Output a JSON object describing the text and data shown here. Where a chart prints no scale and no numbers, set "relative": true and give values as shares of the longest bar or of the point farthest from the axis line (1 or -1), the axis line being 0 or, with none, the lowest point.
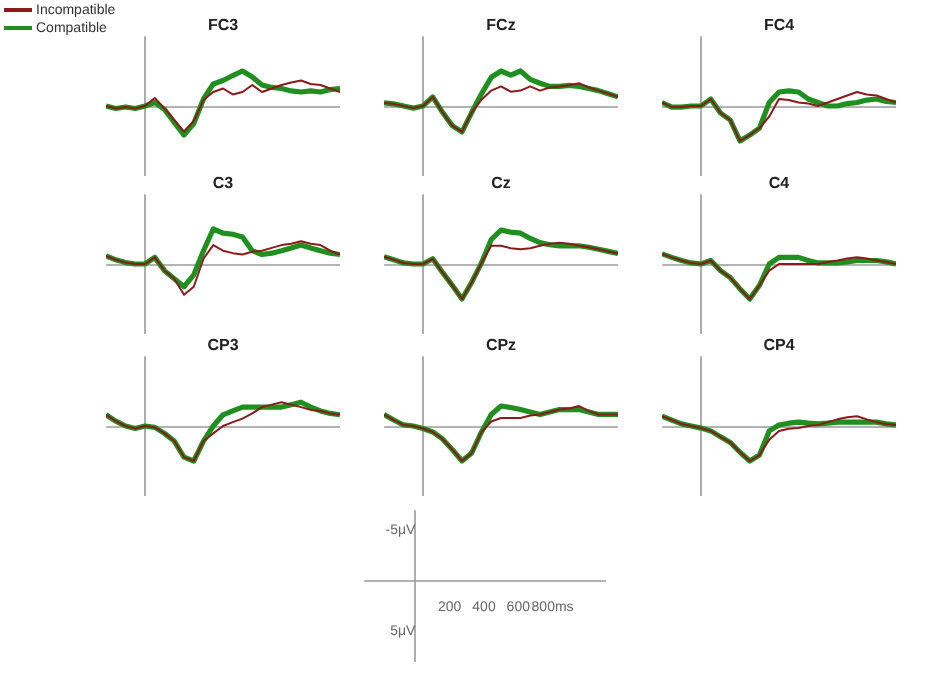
{
  "chart_data": [
    {
      "type": "line",
      "title": "FC3",
      "legend": "top left",
      "relative": true,
      "categories": [
        null,
        null,
        null,
        null,
        null,
        null,
        null,
        null,
        null,
        null,
        null,
        null,
        null,
        null,
        null,
        null,
        null,
        null,
        null,
        null,
        null,
        null,
        null,
        null,
        null
      ],
      "series": [
        {
          "name": "Incompatible",
          "color": "#8b1a1a",
          "values": [
            0,
            -0.07,
            -0.03,
            -0.07,
            0,
            0.23,
            -0.07,
            -0.4,
            -0.73,
            -0.43,
            0.17,
            0.4,
            0.5,
            0.33,
            0.4,
            0.6,
            0.4,
            0.5,
            0.6,
            0.67,
            0.73,
            0.63,
            0.6,
            0.5,
            0.4
          ]
        },
        {
          "name": "Compatible",
          "color": "#1f8f1f",
          "values": [
            0,
            -0.07,
            -0.03,
            -0.07,
            0,
            0.1,
            -0.1,
            -0.47,
            -0.83,
            -0.5,
            0.2,
            0.63,
            0.73,
            0.87,
            1,
            0.83,
            0.6,
            0.53,
            0.5,
            0.43,
            0.4,
            0.43,
            0.4,
            0.47,
            0.5
          ]
        }
      ]
    },
    {
      "type": "line",
      "title": "FCz",
      "relative": true,
      "categories": [
        null,
        null,
        null,
        null,
        null,
        null,
        null,
        null,
        null,
        null,
        null,
        null,
        null,
        null,
        null,
        null,
        null,
        null,
        null,
        null,
        null,
        null,
        null,
        null,
        null
      ],
      "series": [
        {
          "color": "#8b1a1a",
          "values": [
            0.09,
            0.06,
            0,
            -0.06,
            0,
            0.26,
            -0.18,
            -0.56,
            -0.74,
            -0.18,
            0.18,
            0.44,
            0.56,
            0.41,
            0.44,
            0.56,
            0.44,
            0.53,
            0.56,
            0.59,
            0.65,
            0.53,
            0.44,
            0.35,
            0.26
          ]
        },
        {
          "color": "#1f8f1f",
          "values": [
            0.09,
            0.06,
            0,
            -0.06,
            0,
            0.26,
            -0.18,
            -0.56,
            -0.74,
            -0.18,
            0.35,
            0.82,
            1,
            0.88,
            1,
            0.76,
            0.65,
            0.56,
            0.56,
            0.59,
            0.56,
            0.5,
            0.44,
            0.35,
            0.26
          ]
        }
      ]
    },
    {
      "type": "line",
      "title": "FC4",
      "relative": true,
      "categories": [
        null,
        null,
        null,
        null,
        null,
        null,
        null,
        null,
        null,
        null,
        null,
        null,
        null,
        null,
        null,
        null,
        null,
        null,
        null,
        null,
        null,
        null,
        null,
        null,
        null
      ],
      "series": [
        {
          "color": "#8b1a1a",
          "values": [
            0.1,
            -0.03,
            -0.03,
            0,
            0,
            0.2,
            -0.2,
            -0.4,
            -1,
            -0.83,
            -0.63,
            -0.3,
            0.2,
            0.17,
            0.1,
            0.07,
            0,
            0.1,
            0.2,
            0.3,
            0.4,
            0.33,
            0.3,
            0.2,
            0.1
          ]
        },
        {
          "color": "#1f8f1f",
          "values": [
            0.1,
            -0.03,
            -0.03,
            0,
            0,
            0.2,
            -0.2,
            -0.4,
            -1,
            -0.83,
            -0.63,
            0.1,
            0.4,
            0.43,
            0.4,
            0.2,
            0.1,
            0,
            0,
            0.07,
            0.1,
            0.17,
            0.2,
            0.13,
            0.1
          ]
        }
      ]
    },
    {
      "type": "line",
      "title": "C3",
      "relative": true,
      "categories": [
        null,
        null,
        null,
        null,
        null,
        null,
        null,
        null,
        null,
        null,
        null,
        null,
        null,
        null,
        null,
        null,
        null,
        null,
        null,
        null,
        null,
        null,
        null,
        null,
        null
      ],
      "series": [
        {
          "color": "#8b1a1a",
          "values": [
            0.23,
            0.12,
            0.04,
            0,
            0,
            0.19,
            -0.19,
            -0.42,
            -0.88,
            -0.65,
            0.15,
            0.54,
            0.38,
            0.31,
            0.27,
            0.35,
            0.38,
            0.46,
            0.54,
            0.58,
            0.65,
            0.58,
            0.54,
            0.38,
            0.27
          ]
        },
        {
          "color": "#1f8f1f",
          "values": [
            0.23,
            0.12,
            0.04,
            0,
            0,
            0.19,
            -0.19,
            -0.42,
            -0.65,
            -0.31,
            0.38,
            1,
            0.88,
            0.85,
            0.77,
            0.38,
            0.27,
            0.31,
            0.38,
            0.46,
            0.54,
            0.46,
            0.38,
            0.31,
            0.27
          ]
        }
      ]
    },
    {
      "type": "line",
      "title": "Cz",
      "relative": true,
      "categories": [
        null,
        null,
        null,
        null,
        null,
        null,
        null,
        null,
        null,
        null,
        null,
        null,
        null,
        null,
        null,
        null,
        null,
        null,
        null,
        null,
        null,
        null,
        null,
        null,
        null
      ],
      "series": [
        {
          "color": "#8b1a1a",
          "values": [
            0.21,
            0.12,
            0.03,
            0,
            0,
            0.15,
            -0.24,
            -0.61,
            -1,
            -0.52,
            0.03,
            0.52,
            0.52,
            0.45,
            0.42,
            0.45,
            0.52,
            0.58,
            0.61,
            0.58,
            0.52,
            0.48,
            0.42,
            0.36,
            0.3
          ]
        },
        {
          "color": "#1f8f1f",
          "values": [
            0.21,
            0.12,
            0.03,
            0,
            0,
            0.15,
            -0.24,
            -0.61,
            -1,
            -0.52,
            0.03,
            0.7,
            0.97,
            0.91,
            0.88,
            0.73,
            0.61,
            0.55,
            0.52,
            0.52,
            0.52,
            0.48,
            0.42,
            0.36,
            0.3
          ]
        }
      ]
    },
    {
      "type": "line",
      "title": "C4",
      "relative": true,
      "categories": [
        null,
        null,
        null,
        null,
        null,
        null,
        null,
        null,
        null,
        null,
        null,
        null,
        null,
        null,
        null,
        null,
        null,
        null,
        null,
        null,
        null,
        null,
        null,
        null,
        null
      ],
      "series": [
        {
          "color": "#8b1a1a",
          "values": [
            0.29,
            0.19,
            0.1,
            0.03,
            0,
            0.1,
            -0.19,
            -0.39,
            -0.71,
            -1,
            -0.61,
            -0.19,
            0,
            0,
            0,
            0,
            0,
            0.06,
            0.1,
            0.16,
            0.19,
            0.16,
            0.1,
            0.06,
            0
          ]
        },
        {
          "color": "#1f8f1f",
          "values": [
            0.29,
            0.19,
            0.1,
            0.03,
            0,
            0.1,
            -0.19,
            -0.39,
            -0.71,
            -1,
            -0.61,
            0,
            0.19,
            0.19,
            0.19,
            0.1,
            0.03,
            0.03,
            0.03,
            0.06,
            0.1,
            0.1,
            0.1,
            0.06,
            0
          ]
        }
      ]
    },
    {
      "type": "line",
      "title": "CP3",
      "relative": true,
      "categories": [
        null,
        null,
        null,
        null,
        null,
        null,
        null,
        null,
        null,
        null,
        null,
        null,
        null,
        null,
        null,
        null,
        null,
        null,
        null,
        null,
        null,
        null,
        null,
        null,
        null
      ],
      "series": [
        {
          "color": "#8b1a1a",
          "values": [
            0.32,
            0.14,
            0,
            -0.07,
            0,
            -0.04,
            -0.21,
            -0.43,
            -0.89,
            -1,
            -0.43,
            -0.21,
            0,
            0.11,
            0.21,
            0.36,
            0.54,
            0.61,
            0.68,
            0.61,
            0.54,
            0.46,
            0.43,
            0.36,
            0.32
          ]
        },
        {
          "color": "#1f8f1f",
          "values": [
            0.32,
            0.14,
            0,
            -0.07,
            0,
            -0.04,
            -0.21,
            -0.43,
            -0.89,
            -1,
            -0.43,
            0,
            0.32,
            0.43,
            0.54,
            0.54,
            0.54,
            0.54,
            0.54,
            0.61,
            0.68,
            0.54,
            0.43,
            0.36,
            0.32
          ]
        }
      ]
    },
    {
      "type": "line",
      "title": "CPz",
      "relative": true,
      "categories": [
        null,
        null,
        null,
        null,
        null,
        null,
        null,
        null,
        null,
        null,
        null,
        null,
        null,
        null,
        null,
        null,
        null,
        null,
        null,
        null,
        null,
        null,
        null,
        null,
        null
      ],
      "series": [
        {
          "color": "#8b1a1a",
          "values": [
            0.33,
            0.17,
            0.03,
            0,
            -0.07,
            -0.17,
            -0.37,
            -0.67,
            -1,
            -0.77,
            -0.17,
            0.13,
            0.23,
            0.23,
            0.23,
            0.3,
            0.33,
            0.4,
            0.47,
            0.5,
            0.57,
            0.43,
            0.33,
            0.33,
            0.33
          ]
        },
        {
          "color": "#1f8f1f",
          "values": [
            0.33,
            0.17,
            0.03,
            0,
            -0.07,
            -0.17,
            -0.37,
            -0.67,
            -1,
            -0.77,
            -0.17,
            0.33,
            0.57,
            0.53,
            0.47,
            0.4,
            0.33,
            0.4,
            0.47,
            0.47,
            0.47,
            0.4,
            0.33,
            0.33,
            0.33
          ]
        }
      ]
    },
    {
      "type": "line",
      "title": "CP4",
      "relative": true,
      "categories": [
        null,
        null,
        null,
        null,
        null,
        null,
        null,
        null,
        null,
        null,
        null,
        null,
        null,
        null,
        null,
        null,
        null,
        null,
        null,
        null,
        null,
        null,
        null,
        null,
        null
      ],
      "series": [
        {
          "color": "#8b1a1a",
          "values": [
            0.28,
            0.17,
            0.06,
            0,
            -0.06,
            -0.14,
            -0.31,
            -0.47,
            -0.75,
            -1,
            -0.83,
            -0.39,
            -0.14,
            -0.08,
            -0.06,
            0,
            0.03,
            0.11,
            0.19,
            0.25,
            0.28,
            0.19,
            0.11,
            0.06,
            0.03
          ]
        },
        {
          "color": "#1f8f1f",
          "values": [
            0.28,
            0.17,
            0.06,
            0,
            -0.06,
            -0.14,
            -0.31,
            -0.47,
            -0.75,
            -1,
            -0.83,
            -0.14,
            0.03,
            0.08,
            0.11,
            0.08,
            0.06,
            0.08,
            0.11,
            0.11,
            0.11,
            0.11,
            0.11,
            0.06,
            0.03
          ]
        }
      ]
    },
    {
      "type": "line",
      "xlim": [
        -300,
        1100
      ],
      "ylim": [
        8,
        -7
      ],
      "xticks": [
        200,
        400,
        600,
        {
          "value": 800,
          "label": "800ms"
        }
      ],
      "yticks": [
        {
          "value": -5,
          "label": "-5μV"
        },
        {
          "value": 5,
          "label": "5μV"
        }
      ]
    }
  ]
}
